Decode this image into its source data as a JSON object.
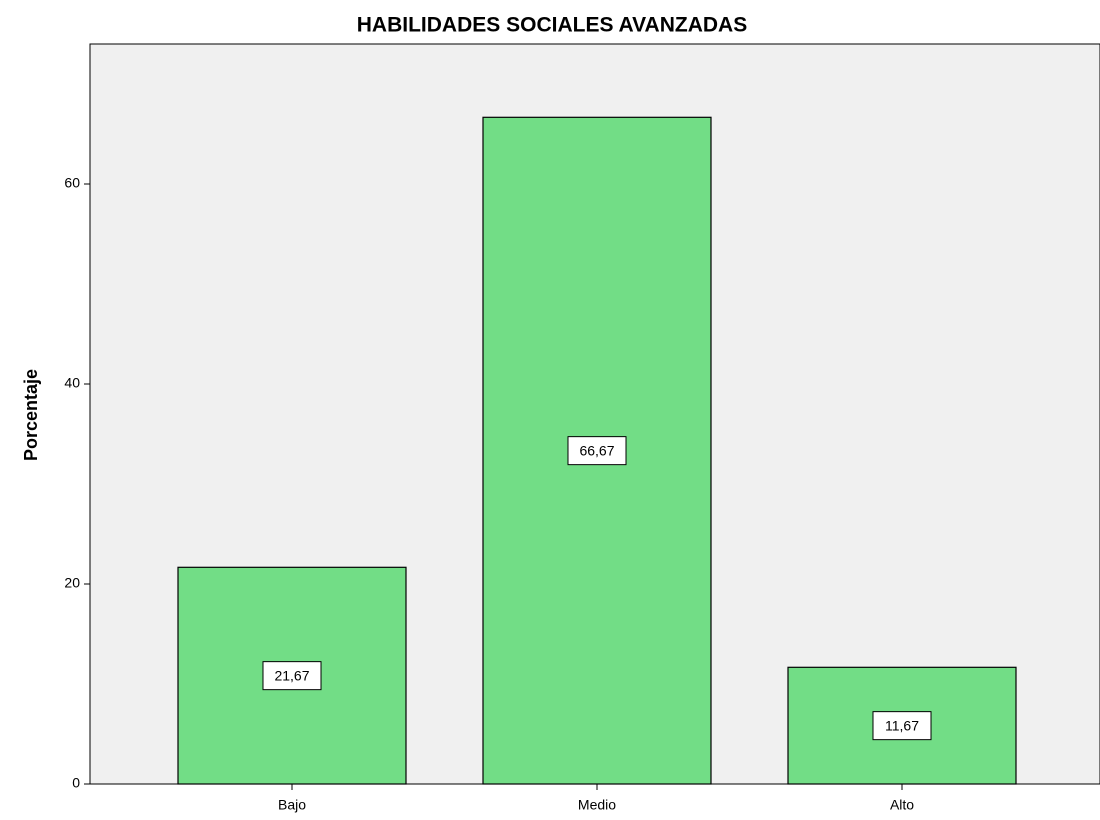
{
  "chart_data": {
    "type": "bar",
    "title": "HABILIDADES SOCIALES AVANZADAS",
    "y_label": "Porcentaje",
    "categories": [
      "Bajo",
      "Medio",
      "Alto"
    ],
    "values": [
      21.67,
      66.67,
      11.67
    ],
    "value_labels": [
      "21,67",
      "66,67",
      "11,67"
    ],
    "color": "#72dd86",
    "ylim": [
      0,
      74
    ],
    "yticks": [
      0,
      20,
      40,
      60
    ],
    "grid": false
  }
}
